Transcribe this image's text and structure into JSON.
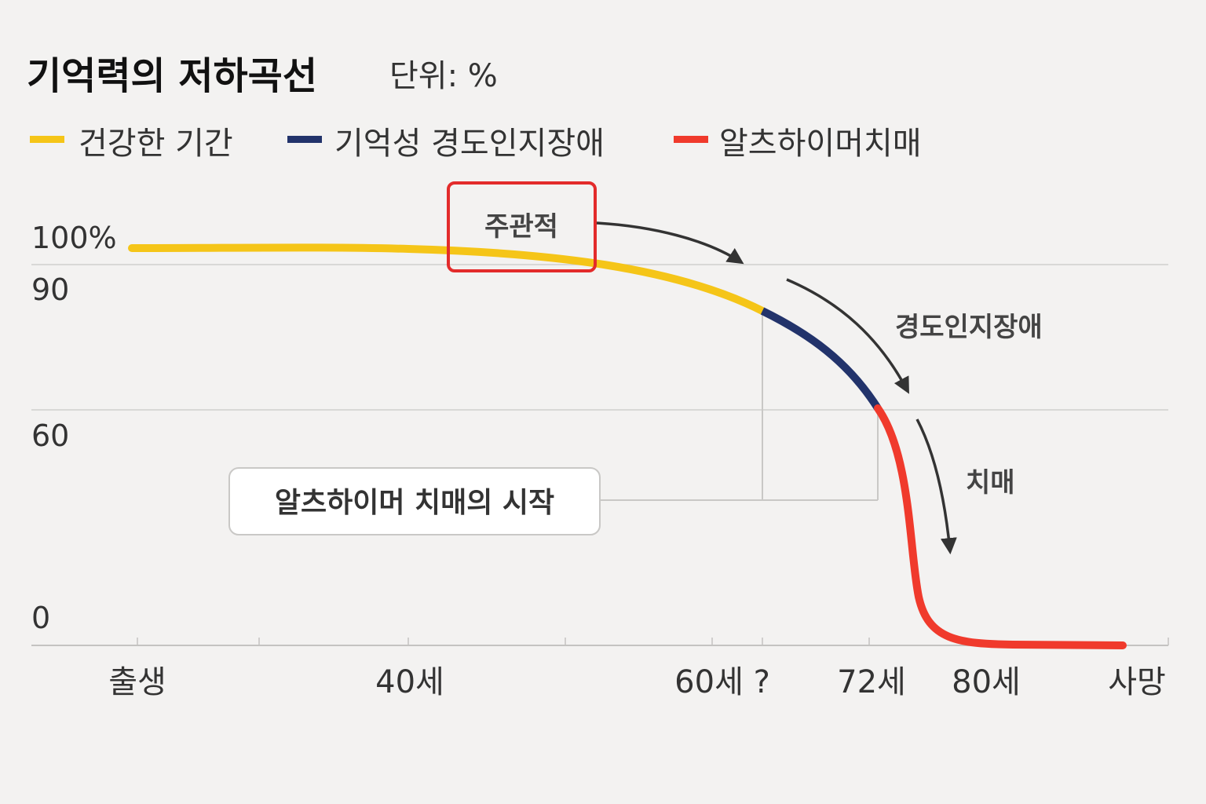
{
  "chart_data": {
    "type": "line",
    "title": "기억력의 저하곡선",
    "subtitle": "단위: %",
    "legend": [
      {
        "label": "건강한 기간",
        "color": "#f5c518"
      },
      {
        "label": "기억성 경도인지장애",
        "color": "#22336b"
      },
      {
        "label": "알츠하이머치매",
        "color": "#f03a2c"
      }
    ],
    "y_ticks": [
      "100%",
      "90",
      "60",
      "0"
    ],
    "x_ticks": [
      "출생",
      "40세",
      "60세 ?",
      "72세",
      "80세",
      "사망"
    ],
    "ylim": [
      0,
      100
    ],
    "grid": "horizontal",
    "legend_position": "top-left",
    "series": [
      {
        "name": "건강한 기간",
        "color": "#f5c518",
        "points": [
          [
            "출생",
            98
          ],
          [
            20,
            98
          ],
          [
            35,
            97.7
          ],
          [
            50,
            94
          ],
          [
            60,
            81
          ]
        ]
      },
      {
        "name": "기억성 경도인지장애",
        "color": "#22336b",
        "points": [
          [
            60,
            81
          ],
          [
            66,
            73
          ],
          [
            70,
            62
          ],
          [
            72,
            59
          ]
        ]
      },
      {
        "name": "알츠하이머치매",
        "color": "#f03a2c",
        "points": [
          [
            72,
            59
          ],
          [
            74,
            38
          ],
          [
            75,
            20
          ],
          [
            77,
            4
          ],
          [
            80,
            1
          ],
          [
            "사망",
            0
          ]
        ]
      }
    ],
    "annotations": {
      "subjective": "주관적",
      "mci": "경도인지장애",
      "dementia": "치매",
      "onset": "알츠하이머 치매의 시작"
    }
  }
}
